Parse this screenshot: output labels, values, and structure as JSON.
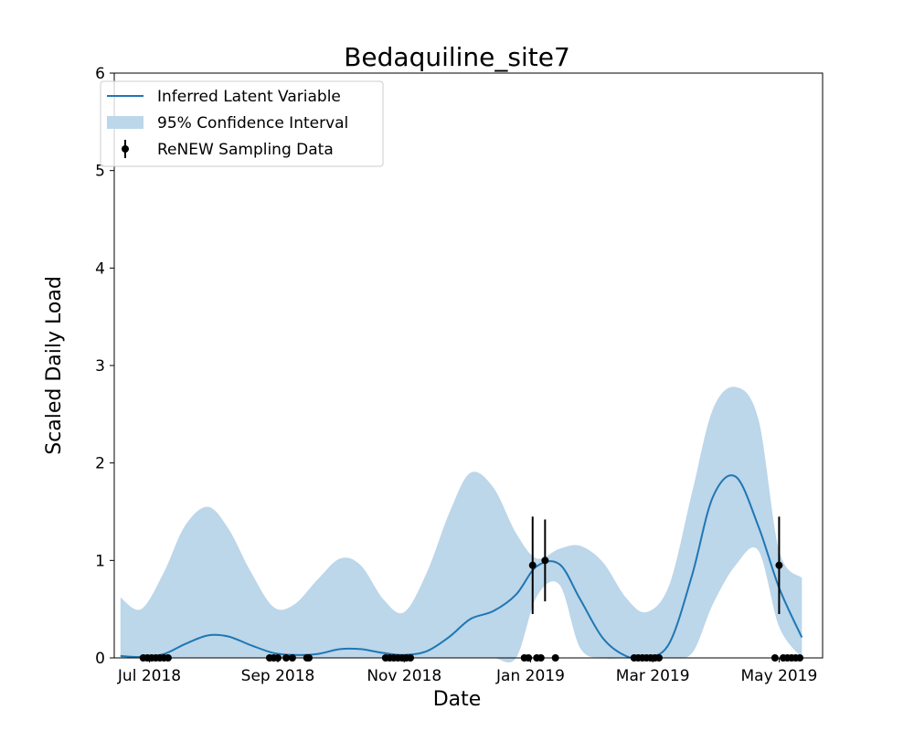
{
  "chart_data": {
    "type": "line",
    "title": "Bedaquiline_site7",
    "xlabel": "Date",
    "ylabel": "Scaled Daily Load",
    "x_scale": "date",
    "xlim": [
      "2018-06-14",
      "2019-05-22"
    ],
    "ylim": [
      0,
      6
    ],
    "x_ticks": [
      {
        "date": "2018-07-01",
        "label": "Jul 2018"
      },
      {
        "date": "2018-09-01",
        "label": "Sep 2018"
      },
      {
        "date": "2018-11-01",
        "label": "Nov 2018"
      },
      {
        "date": "2019-01-01",
        "label": "Jan 2019"
      },
      {
        "date": "2019-03-01",
        "label": "Mar 2019"
      },
      {
        "date": "2019-05-01",
        "label": "May 2019"
      }
    ],
    "y_ticks": [
      0,
      1,
      2,
      3,
      4,
      5,
      6
    ],
    "grid": false,
    "legend": {
      "position": "top-left",
      "entries": [
        {
          "label": "Inferred Latent Variable",
          "kind": "line"
        },
        {
          "label": "95% Confidence Interval",
          "kind": "band"
        },
        {
          "label": "ReNEW Sampling Data",
          "kind": "errorbar"
        }
      ]
    },
    "colors": {
      "line": "#1f77b4",
      "band": "#bcd6ea",
      "points": "#000000"
    },
    "series": [
      {
        "name": "Inferred Latent Variable",
        "points": [
          {
            "x": "2018-06-17",
            "y": 0.02
          },
          {
            "x": "2018-06-27",
            "y": 0.01
          },
          {
            "x": "2018-07-08",
            "y": 0.04
          },
          {
            "x": "2018-07-18",
            "y": 0.14
          },
          {
            "x": "2018-07-29",
            "y": 0.23
          },
          {
            "x": "2018-08-08",
            "y": 0.22
          },
          {
            "x": "2018-08-19",
            "y": 0.13
          },
          {
            "x": "2018-08-30",
            "y": 0.05
          },
          {
            "x": "2018-09-09",
            "y": 0.03
          },
          {
            "x": "2018-09-20",
            "y": 0.04
          },
          {
            "x": "2018-10-01",
            "y": 0.09
          },
          {
            "x": "2018-10-11",
            "y": 0.09
          },
          {
            "x": "2018-10-22",
            "y": 0.05
          },
          {
            "x": "2018-11-01",
            "y": 0.03
          },
          {
            "x": "2018-11-12",
            "y": 0.07
          },
          {
            "x": "2018-11-23",
            "y": 0.22
          },
          {
            "x": "2018-12-03",
            "y": 0.4
          },
          {
            "x": "2018-12-14",
            "y": 0.48
          },
          {
            "x": "2018-12-25",
            "y": 0.65
          },
          {
            "x": "2019-01-04",
            "y": 0.94
          },
          {
            "x": "2019-01-15",
            "y": 0.96
          },
          {
            "x": "2019-01-25",
            "y": 0.6
          },
          {
            "x": "2019-02-05",
            "y": 0.2
          },
          {
            "x": "2019-02-16",
            "y": 0.02
          },
          {
            "x": "2019-02-26",
            "y": 0.0
          },
          {
            "x": "2019-03-09",
            "y": 0.15
          },
          {
            "x": "2019-03-20",
            "y": 0.85
          },
          {
            "x": "2019-03-30",
            "y": 1.65
          },
          {
            "x": "2019-04-10",
            "y": 1.86
          },
          {
            "x": "2019-04-21",
            "y": 1.35
          },
          {
            "x": "2019-05-01",
            "y": 0.72
          },
          {
            "x": "2019-05-12",
            "y": 0.21
          }
        ]
      },
      {
        "name": "95% Confidence Interval",
        "points": [
          {
            "x": "2018-06-17",
            "lower": 0.0,
            "upper": 0.62
          },
          {
            "x": "2018-06-27",
            "lower": 0.0,
            "upper": 0.5
          },
          {
            "x": "2018-07-08",
            "lower": 0.0,
            "upper": 0.88
          },
          {
            "x": "2018-07-18",
            "lower": 0.0,
            "upper": 1.35
          },
          {
            "x": "2018-07-29",
            "lower": 0.0,
            "upper": 1.55
          },
          {
            "x": "2018-08-08",
            "lower": 0.0,
            "upper": 1.33
          },
          {
            "x": "2018-08-19",
            "lower": 0.0,
            "upper": 0.88
          },
          {
            "x": "2018-08-30",
            "lower": 0.0,
            "upper": 0.52
          },
          {
            "x": "2018-09-09",
            "lower": 0.0,
            "upper": 0.55
          },
          {
            "x": "2018-09-20",
            "lower": 0.0,
            "upper": 0.8
          },
          {
            "x": "2018-10-01",
            "lower": 0.0,
            "upper": 1.02
          },
          {
            "x": "2018-10-11",
            "lower": 0.0,
            "upper": 0.95
          },
          {
            "x": "2018-10-22",
            "lower": 0.0,
            "upper": 0.6
          },
          {
            "x": "2018-11-01",
            "lower": 0.0,
            "upper": 0.47
          },
          {
            "x": "2018-11-12",
            "lower": 0.0,
            "upper": 0.88
          },
          {
            "x": "2018-11-23",
            "lower": 0.0,
            "upper": 1.5
          },
          {
            "x": "2018-12-03",
            "lower": 0.0,
            "upper": 1.9
          },
          {
            "x": "2018-12-14",
            "lower": 0.0,
            "upper": 1.75
          },
          {
            "x": "2018-12-25",
            "lower": 0.0,
            "upper": 1.28
          },
          {
            "x": "2019-01-04",
            "lower": 0.63,
            "upper": 1.02
          },
          {
            "x": "2019-01-15",
            "lower": 0.75,
            "upper": 1.12
          },
          {
            "x": "2019-01-25",
            "lower": 0.1,
            "upper": 1.15
          },
          {
            "x": "2019-02-05",
            "lower": 0.0,
            "upper": 0.98
          },
          {
            "x": "2019-02-16",
            "lower": 0.0,
            "upper": 0.62
          },
          {
            "x": "2019-02-26",
            "lower": 0.0,
            "upper": 0.47
          },
          {
            "x": "2019-03-09",
            "lower": 0.0,
            "upper": 0.75
          },
          {
            "x": "2019-03-20",
            "lower": 0.05,
            "upper": 1.7
          },
          {
            "x": "2019-03-30",
            "lower": 0.55,
            "upper": 2.55
          },
          {
            "x": "2019-04-10",
            "lower": 0.95,
            "upper": 2.78
          },
          {
            "x": "2019-04-21",
            "lower": 1.1,
            "upper": 2.45
          },
          {
            "x": "2019-05-01",
            "lower": 0.32,
            "upper": 1.1
          },
          {
            "x": "2019-05-12",
            "lower": 0.0,
            "upper": 0.82
          }
        ]
      },
      {
        "name": "ReNEW Sampling Data",
        "points": [
          {
            "x": "2018-06-28",
            "y": 0.0
          },
          {
            "x": "2018-06-30",
            "y": 0.0
          },
          {
            "x": "2018-07-02",
            "y": 0.0
          },
          {
            "x": "2018-07-04",
            "y": 0.0
          },
          {
            "x": "2018-07-06",
            "y": 0.0
          },
          {
            "x": "2018-07-08",
            "y": 0.0
          },
          {
            "x": "2018-07-10",
            "y": 0.0
          },
          {
            "x": "2018-08-28",
            "y": 0.0
          },
          {
            "x": "2018-08-30",
            "y": 0.0
          },
          {
            "x": "2018-09-01",
            "y": 0.0
          },
          {
            "x": "2018-09-05",
            "y": 0.0
          },
          {
            "x": "2018-09-08",
            "y": 0.0
          },
          {
            "x": "2018-09-15",
            "y": 0.0
          },
          {
            "x": "2018-09-16",
            "y": 0.0
          },
          {
            "x": "2018-10-23",
            "y": 0.0
          },
          {
            "x": "2018-10-25",
            "y": 0.0
          },
          {
            "x": "2018-10-27",
            "y": 0.0
          },
          {
            "x": "2018-10-29",
            "y": 0.0
          },
          {
            "x": "2018-10-31",
            "y": 0.0
          },
          {
            "x": "2018-11-02",
            "y": 0.0
          },
          {
            "x": "2018-11-04",
            "y": 0.0
          },
          {
            "x": "2018-12-29",
            "y": 0.0
          },
          {
            "x": "2018-12-31",
            "y": 0.0
          },
          {
            "x": "2019-01-02",
            "y": 0.95,
            "err": 0.5
          },
          {
            "x": "2019-01-04",
            "y": 0.0
          },
          {
            "x": "2019-01-06",
            "y": 0.0
          },
          {
            "x": "2019-01-08",
            "y": 1.0,
            "err": 0.42
          },
          {
            "x": "2019-01-13",
            "y": 0.0
          },
          {
            "x": "2019-02-20",
            "y": 0.0
          },
          {
            "x": "2019-02-22",
            "y": 0.0
          },
          {
            "x": "2019-02-24",
            "y": 0.0
          },
          {
            "x": "2019-02-26",
            "y": 0.0
          },
          {
            "x": "2019-02-28",
            "y": 0.0
          },
          {
            "x": "2019-03-02",
            "y": 0.0
          },
          {
            "x": "2019-03-04",
            "y": 0.0
          },
          {
            "x": "2019-04-29",
            "y": 0.0
          },
          {
            "x": "2019-05-01",
            "y": 0.95,
            "err": 0.5
          },
          {
            "x": "2019-05-03",
            "y": 0.0
          },
          {
            "x": "2019-05-05",
            "y": 0.0
          },
          {
            "x": "2019-05-07",
            "y": 0.0
          },
          {
            "x": "2019-05-09",
            "y": 0.0
          },
          {
            "x": "2019-05-11",
            "y": 0.0
          }
        ]
      }
    ]
  }
}
